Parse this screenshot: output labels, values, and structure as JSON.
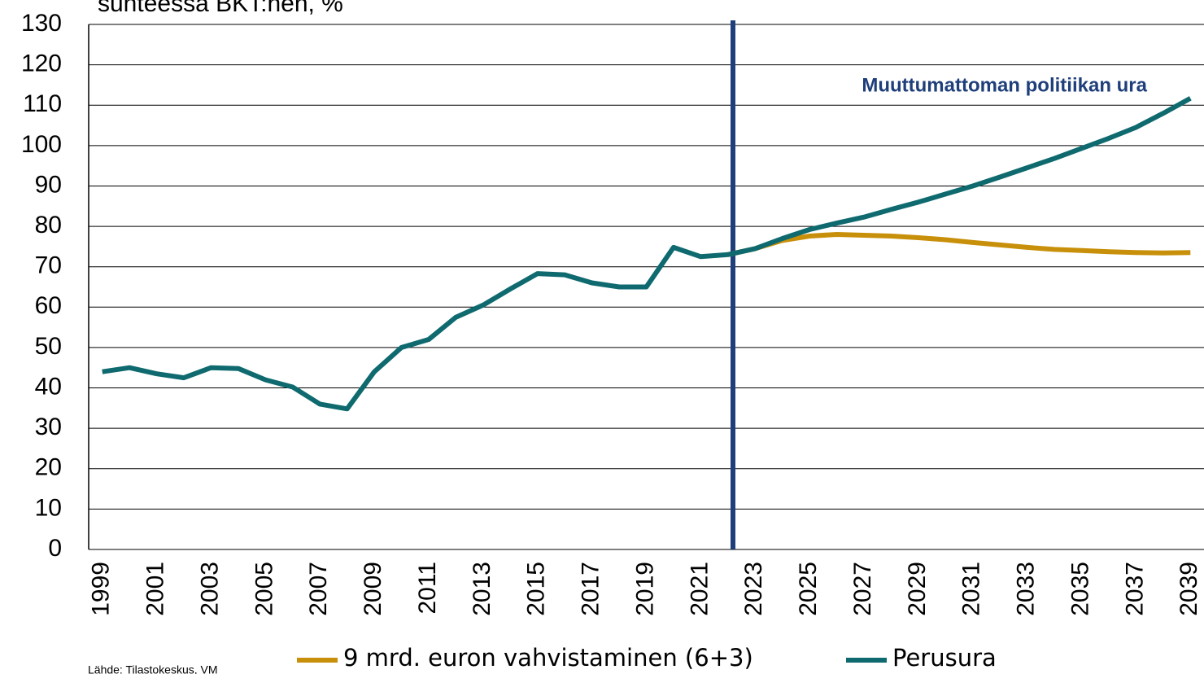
{
  "chart_data": {
    "type": "line",
    "title": "suhteessa BKT:hen, %",
    "annotation": "Muuttumattoman politiikan ura",
    "source": "Lähde: Tilastokeskus, VM",
    "categories": [
      "1999",
      null,
      "2001",
      null,
      "2003",
      null,
      "2005",
      null,
      "2007",
      null,
      "2009",
      null,
      "2011",
      null,
      "2013",
      null,
      "2015",
      null,
      "2017",
      null,
      "2019",
      null,
      "2021",
      null,
      "2023",
      null,
      "2025",
      null,
      "2027",
      null,
      "2029",
      null,
      "2031",
      null,
      "2033",
      null,
      "2035",
      null,
      "2037",
      null,
      "2039"
    ],
    "series": [
      {
        "name": "9 mrd. euron vahvistaminen (6+3)",
        "color": "#c8900a",
        "values": [
          null,
          null,
          null,
          null,
          null,
          null,
          null,
          null,
          null,
          null,
          null,
          null,
          null,
          null,
          null,
          null,
          null,
          null,
          null,
          null,
          null,
          null,
          null,
          73,
          74.5,
          76.5,
          77.6,
          78,
          77.8,
          77.6,
          77.2,
          76.7,
          76,
          75.4,
          74.8,
          74.3,
          74,
          73.7,
          73.5,
          73.4,
          73.5
        ]
      },
      {
        "name": "Perusura",
        "color": "#0f6a6f",
        "values": [
          44,
          45,
          43.5,
          42.5,
          45,
          44.8,
          42,
          40.2,
          36,
          34.8,
          44,
          50,
          52,
          57.5,
          60.5,
          64.5,
          68.3,
          68,
          66,
          65,
          65,
          74.8,
          72.5,
          73,
          74.5,
          77,
          79.2,
          80.8,
          82.3,
          84.2,
          86,
          88,
          90,
          92.2,
          94.5,
          96.8,
          99.3,
          101.8,
          104.5,
          108,
          111.7
        ]
      }
    ],
    "ylim": [
      0,
      130
    ],
    "yticks": [
      0,
      10,
      20,
      30,
      40,
      50,
      60,
      70,
      80,
      90,
      100,
      110,
      120,
      130
    ],
    "grid": true
  }
}
